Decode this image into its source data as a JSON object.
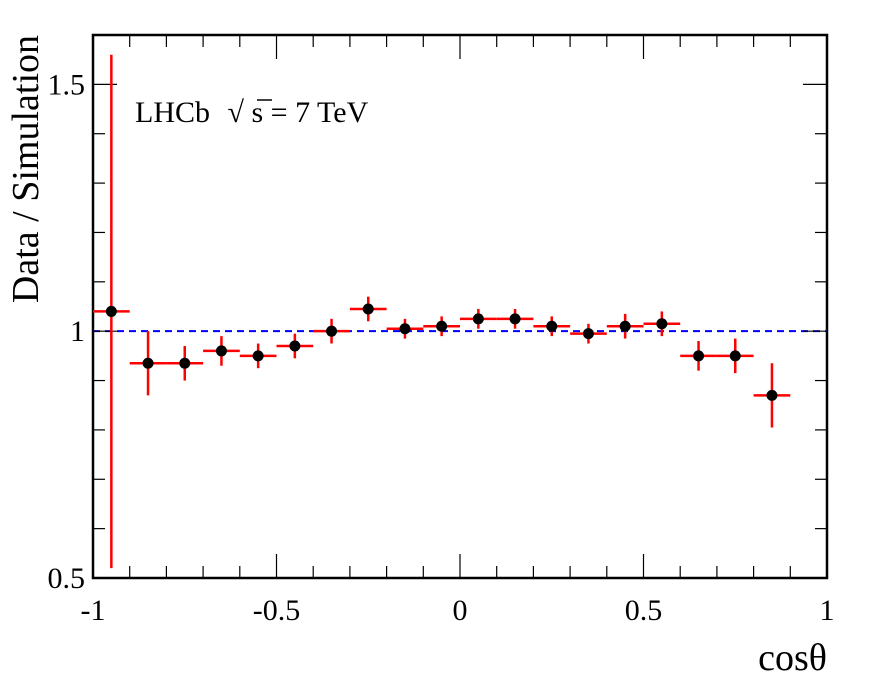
{
  "chart_data": {
    "type": "scatter",
    "xlabel": "cosθ",
    "ylabel": "Data / Simulation",
    "xlim": [
      -1,
      1
    ],
    "ylim": [
      0.5,
      1.6
    ],
    "x_ticks": [
      -1,
      -0.5,
      0,
      0.5,
      1
    ],
    "x_tick_labels": [
      "-1",
      "-0.5",
      "0",
      "0.5",
      "1"
    ],
    "y_ticks": [
      0.5,
      1,
      1.5
    ],
    "y_tick_labels": [
      "0.5",
      "1",
      "1.5"
    ],
    "annotation": {
      "prefix": "LHCb",
      "sqrt_symbol": "√",
      "radicand": "s",
      "suffix": " = 7 TeV"
    },
    "reference_line": {
      "y": 1,
      "style": "dashed",
      "color": "#0000ff"
    },
    "marker_color": "#000000",
    "error_color": "#ff0000",
    "grid": false,
    "series": [
      {
        "x": [
          -0.95,
          -0.85,
          -0.75,
          -0.65,
          -0.55,
          -0.45,
          -0.35,
          -0.25,
          -0.15,
          -0.05,
          0.05,
          0.15,
          0.25,
          0.35,
          0.45,
          0.55,
          0.65,
          0.75,
          0.85
        ],
        "y": [
          1.04,
          0.935,
          0.935,
          0.96,
          0.95,
          0.97,
          1.0,
          1.045,
          1.005,
          1.01,
          1.025,
          1.025,
          1.01,
          0.995,
          1.01,
          1.015,
          0.95,
          0.95,
          0.87
        ],
        "yerr": [
          0.52,
          0.065,
          0.035,
          0.03,
          0.025,
          0.025,
          0.025,
          0.025,
          0.02,
          0.02,
          0.02,
          0.02,
          0.02,
          0.02,
          0.025,
          0.025,
          0.03,
          0.035,
          0.065
        ],
        "xerr": [
          0.05,
          0.05,
          0.05,
          0.05,
          0.05,
          0.05,
          0.05,
          0.05,
          0.05,
          0.05,
          0.05,
          0.05,
          0.05,
          0.05,
          0.05,
          0.05,
          0.05,
          0.05,
          0.05
        ]
      }
    ]
  }
}
